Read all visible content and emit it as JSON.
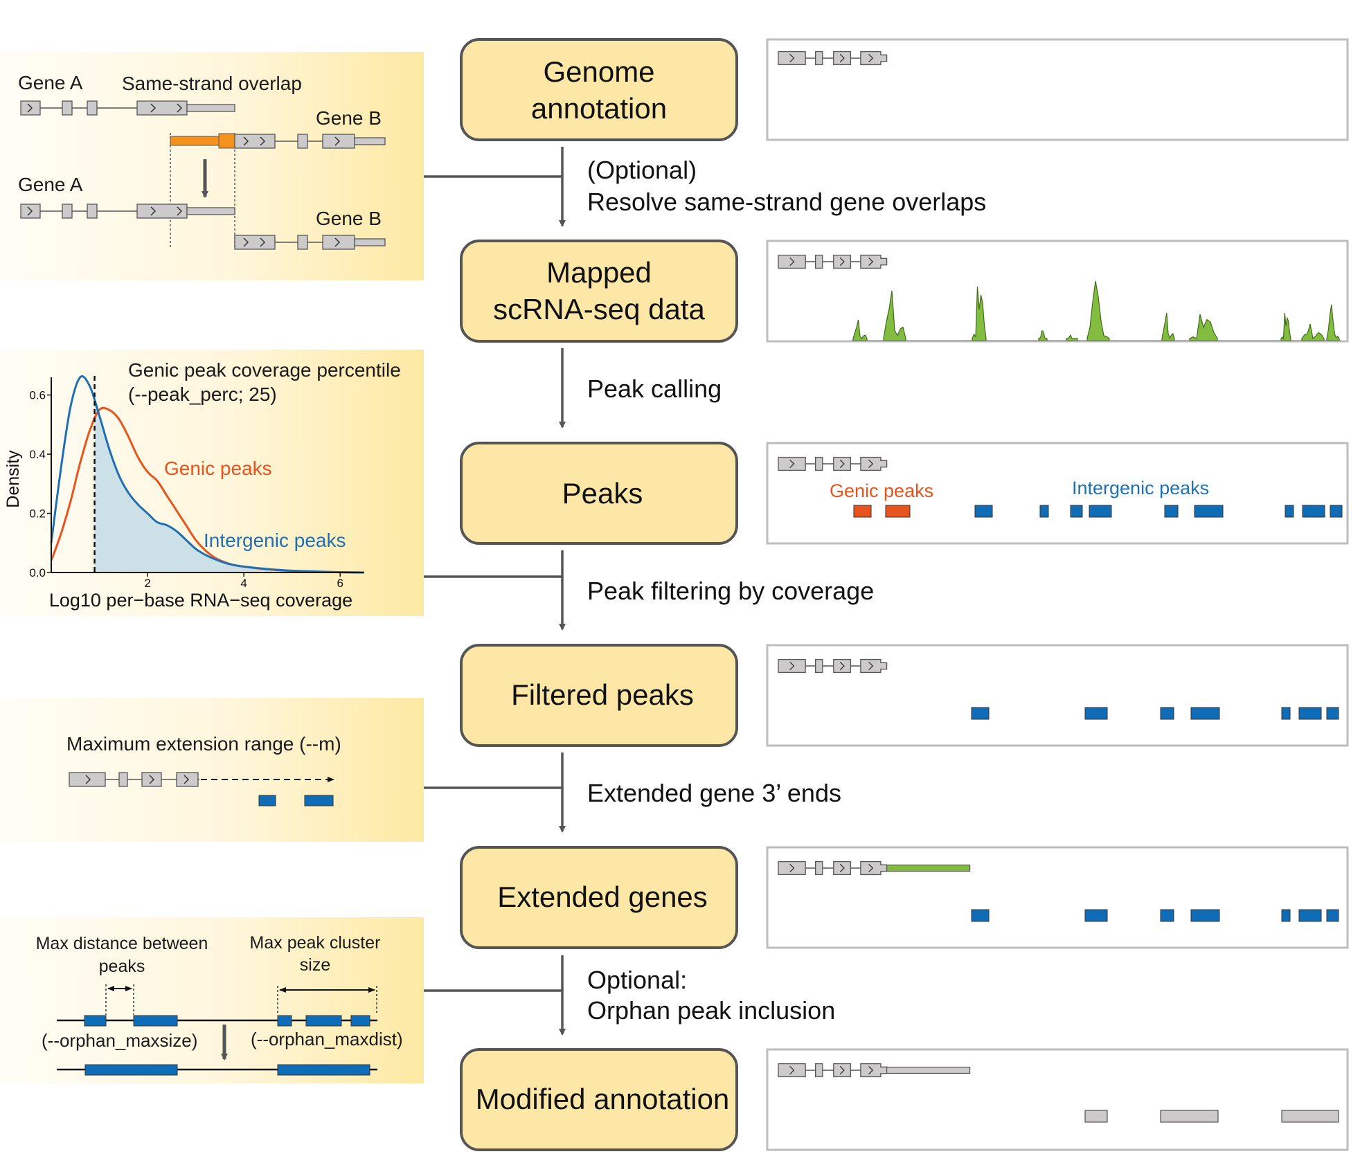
{
  "flow": {
    "boxes": [
      {
        "label_lines": [
          "Genome",
          "annotation"
        ]
      },
      {
        "label_lines": [
          "Mapped",
          "scRNA-seq data"
        ]
      },
      {
        "label_lines": [
          "Peaks"
        ]
      },
      {
        "label_lines": [
          "Filtered peaks"
        ]
      },
      {
        "label_lines": [
          "Extended genes"
        ]
      },
      {
        "label_lines": [
          "Modified annotation"
        ]
      }
    ],
    "steps": [
      {
        "lines": [
          "(Optional)",
          "Resolve same-strand gene overlaps"
        ]
      },
      {
        "lines": [
          "Peak calling"
        ]
      },
      {
        "lines": [
          "Peak filtering by coverage"
        ]
      },
      {
        "lines": [
          "Extended gene 3’ ends"
        ]
      },
      {
        "lines": [
          "Optional:",
          "Orphan peak inclusion"
        ]
      }
    ]
  },
  "overlap_panel": {
    "gene_a_top": "Gene A",
    "overlap": "Same-strand overlap",
    "gene_b_top": "Gene B",
    "gene_a_bottom": "Gene A",
    "gene_b_bottom": "Gene B"
  },
  "density_panel": {
    "percentile_line1": "Genic peak coverage percentile",
    "percentile_line2": "(--peak_perc; 25)"
  },
  "chart_data": {
    "type": "line",
    "title": "",
    "xlabel": "Log10 per−base RNA−seq coverage",
    "ylabel": "Density",
    "xlim": [
      0,
      6.5
    ],
    "ylim": [
      0,
      0.66
    ],
    "xticks": [
      "2",
      "4",
      "6"
    ],
    "yticks": [
      "0.0",
      "0.2",
      "0.4",
      "0.6"
    ],
    "grid": false,
    "threshold_x": 0.9,
    "x": [
      0,
      0.2,
      0.4,
      0.6,
      0.8,
      1.0,
      1.2,
      1.4,
      1.6,
      1.8,
      2.0,
      2.2,
      2.4,
      2.6,
      2.8,
      3.0,
      3.2,
      3.4,
      3.6,
      3.8,
      4.0,
      4.4,
      4.8,
      5.2,
      5.6,
      6.0,
      6.5
    ],
    "series": [
      {
        "name": "Genic peaks",
        "color": "#e8541e",
        "values": [
          0.04,
          0.13,
          0.24,
          0.37,
          0.48,
          0.55,
          0.55,
          0.52,
          0.46,
          0.39,
          0.34,
          0.31,
          0.26,
          0.21,
          0.16,
          0.11,
          0.075,
          0.05,
          0.035,
          0.025,
          0.02,
          0.012,
          0.007,
          0.004,
          0.002,
          0.001,
          0.0
        ]
      },
      {
        "name": "Intergenic peaks",
        "color": "#1f6fb5",
        "values": [
          0.1,
          0.35,
          0.56,
          0.66,
          0.63,
          0.53,
          0.42,
          0.33,
          0.27,
          0.23,
          0.2,
          0.17,
          0.16,
          0.14,
          0.11,
          0.08,
          0.06,
          0.045,
          0.033,
          0.025,
          0.02,
          0.013,
          0.008,
          0.005,
          0.003,
          0.001,
          0.0
        ]
      }
    ]
  },
  "extension_panel": {
    "label": "Maximum extension range (--m)"
  },
  "orphan_panel": {
    "dist_line1": "Max distance between",
    "dist_line2": "peaks",
    "size_line1": "Max peak cluster",
    "size_line2": "size",
    "param_size": "(--orphan_maxsize)",
    "param_dist": "(--orphan_maxdist)"
  },
  "right_panels": {
    "peaks_genic": "Genic peaks",
    "peaks_intergenic": "Intergenic peaks"
  },
  "colors": {
    "box_fill": "#fde7a6",
    "gene_gray": "#cccaca",
    "coverage_green": "#83bd3f",
    "genic_orange": "#e8541e",
    "overlap_orange": "#f5921e",
    "peak_blue": "#0f6cb6",
    "intergenic_text": "#1f6fb5",
    "shade_blue": "#c6dde8"
  }
}
